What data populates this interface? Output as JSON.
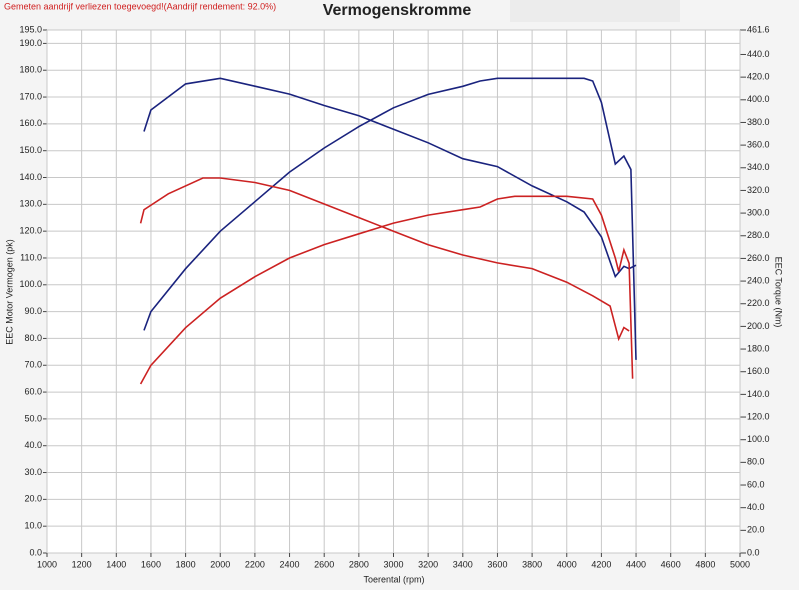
{
  "chart_data": {
    "type": "line",
    "header": "Gemeten aandrijf verliezen toegevoegd!(Aandrijf rendement: 92.0%)",
    "title": "Vermogenskromme",
    "x_label": "Toerental (rpm)",
    "y_label": "EEC Motor Vermogen (pk)",
    "y2_label": "EEC Torque (Nm)",
    "xlim": [
      1000,
      5000
    ],
    "xticks": [
      1000,
      1200,
      1400,
      1600,
      1800,
      2000,
      2200,
      2400,
      2600,
      2800,
      3000,
      3200,
      3400,
      3600,
      3800,
      4000,
      4200,
      4400,
      4600,
      4800,
      5000
    ],
    "ylim": [
      0,
      195
    ],
    "yticks": [
      {
        "value": 0,
        "label": "0.0"
      },
      {
        "value": 10,
        "label": "10.0"
      },
      {
        "value": 20,
        "label": "20.0"
      },
      {
        "value": 30,
        "label": "30.0"
      },
      {
        "value": 40,
        "label": "40.0"
      },
      {
        "value": 50,
        "label": "50.0"
      },
      {
        "value": 60,
        "label": "60.0"
      },
      {
        "value": 70,
        "label": "70.0"
      },
      {
        "value": 80,
        "label": "80.0"
      },
      {
        "value": 90,
        "label": "90.0"
      },
      {
        "value": 100,
        "label": "100.0"
      },
      {
        "value": 110,
        "label": "110.0"
      },
      {
        "value": 120,
        "label": "120.0"
      },
      {
        "value": 130,
        "label": "130.0"
      },
      {
        "value": 140,
        "label": "140.0"
      },
      {
        "value": 150,
        "label": "150.0"
      },
      {
        "value": 160,
        "label": "160.0"
      },
      {
        "value": 170,
        "label": "170.0"
      },
      {
        "value": 180,
        "label": "180.0"
      },
      {
        "value": 190,
        "label": "190.0"
      },
      {
        "value": 195,
        "label": "195.0"
      }
    ],
    "y2lim": [
      0,
      461.6
    ],
    "y2ticks": [
      {
        "value": 0,
        "label": "0.0"
      },
      {
        "value": 20,
        "label": "20.0"
      },
      {
        "value": 40,
        "label": "40.0"
      },
      {
        "value": 60,
        "label": "60.0"
      },
      {
        "value": 80,
        "label": "80.0"
      },
      {
        "value": 100,
        "label": "100.0"
      },
      {
        "value": 120,
        "label": "120.0"
      },
      {
        "value": 140,
        "label": "140.0"
      },
      {
        "value": 160,
        "label": "160.0"
      },
      {
        "value": 180,
        "label": "180.0"
      },
      {
        "value": 200,
        "label": "200.0"
      },
      {
        "value": 220,
        "label": "220.0"
      },
      {
        "value": 240,
        "label": "240.0"
      },
      {
        "value": 260,
        "label": "260.0"
      },
      {
        "value": 280,
        "label": "280.0"
      },
      {
        "value": 300,
        "label": "300.0"
      },
      {
        "value": 320,
        "label": "320.0"
      },
      {
        "value": 340,
        "label": "340.0"
      },
      {
        "value": 360,
        "label": "360.0"
      },
      {
        "value": 380,
        "label": "380.0"
      },
      {
        "value": 400,
        "label": "400.0"
      },
      {
        "value": 420,
        "label": "420.0"
      },
      {
        "value": 440,
        "label": "440.0"
      },
      461.6
    ],
    "grid": true,
    "series": [
      {
        "color": "#1a237e",
        "axis": "y",
        "x": [
          1560,
          1600,
          1800,
          2000,
          2200,
          2400,
          2600,
          2800,
          3000,
          3200,
          3400,
          3500,
          3600,
          3700,
          3800,
          3900,
          4000,
          4100,
          4150,
          4200,
          4280,
          4330,
          4370,
          4400
        ],
        "values": [
          83,
          90,
          106,
          120,
          131,
          142,
          151,
          159,
          166,
          171,
          174,
          176,
          177,
          177,
          177,
          177,
          177,
          177,
          176,
          168,
          145,
          148,
          143,
          72
        ]
      },
      {
        "color": "#1a237e",
        "axis": "y2",
        "x": [
          1560,
          1600,
          1800,
          2000,
          2200,
          2400,
          2600,
          2800,
          3000,
          3200,
          3400,
          3600,
          3800,
          4000,
          4100,
          4200,
          4280,
          4330,
          4360,
          4400
        ],
        "values": [
          372,
          391,
          414,
          419,
          412,
          405,
          395,
          386,
          374,
          362,
          348,
          341,
          324,
          310,
          301,
          279,
          244,
          253,
          251,
          254
        ]
      },
      {
        "color": "#cc2222",
        "axis": "y",
        "x": [
          1540,
          1600,
          1800,
          2000,
          2200,
          2400,
          2600,
          2800,
          3000,
          3200,
          3400,
          3500,
          3600,
          3700,
          4000,
          4150,
          4200,
          4280,
          4300,
          4330,
          4360,
          4380
        ],
        "values": [
          63,
          70,
          84,
          95,
          103,
          110,
          115,
          119,
          123,
          126,
          128,
          129,
          132,
          133,
          133,
          132,
          126,
          110,
          105,
          113,
          108,
          65
        ]
      },
      {
        "color": "#cc2222",
        "axis": "y2",
        "x": [
          1540,
          1560,
          1700,
          1900,
          2000,
          2200,
          2400,
          2600,
          2800,
          3000,
          3200,
          3400,
          3600,
          3800,
          4000,
          4150,
          4250,
          4300,
          4330,
          4360
        ],
        "values": [
          291,
          303,
          317,
          331,
          331,
          327,
          320,
          308,
          296,
          284,
          272,
          263,
          256,
          251,
          239,
          227,
          218,
          189,
          199,
          196
        ]
      }
    ]
  }
}
